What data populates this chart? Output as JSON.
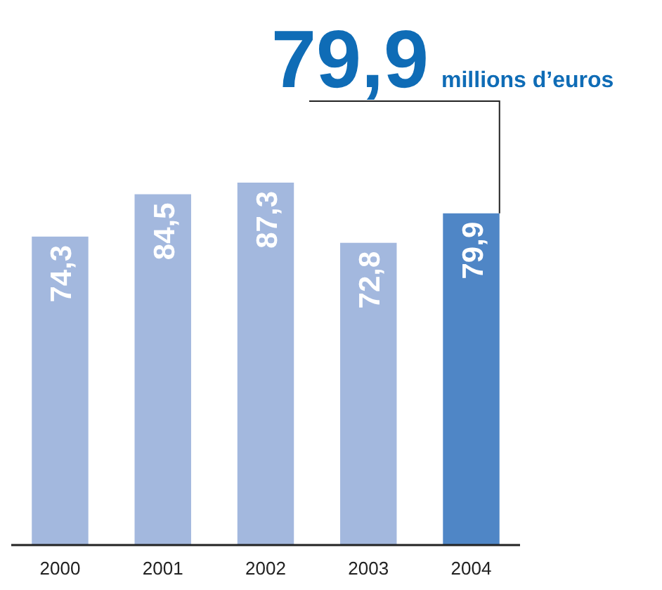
{
  "chart_data": {
    "type": "bar",
    "categories": [
      "2000",
      "2001",
      "2002",
      "2003",
      "2004"
    ],
    "values": [
      74.3,
      84.5,
      87.3,
      72.8,
      79.9
    ],
    "colors": [
      "#a3b8de",
      "#a3b8de",
      "#a3b8de",
      "#a3b8de",
      "#4f86c6"
    ],
    "value_labels": [
      "74,3",
      "84,5",
      "87,3",
      "72,8",
      "79,9"
    ],
    "tick_labels": "x",
    "grid": false,
    "ylabel": "millions d’euros",
    "annotations": [
      {
        "text": "79,9",
        "x": "2004",
        "y": 79.9
      }
    ]
  }
}
